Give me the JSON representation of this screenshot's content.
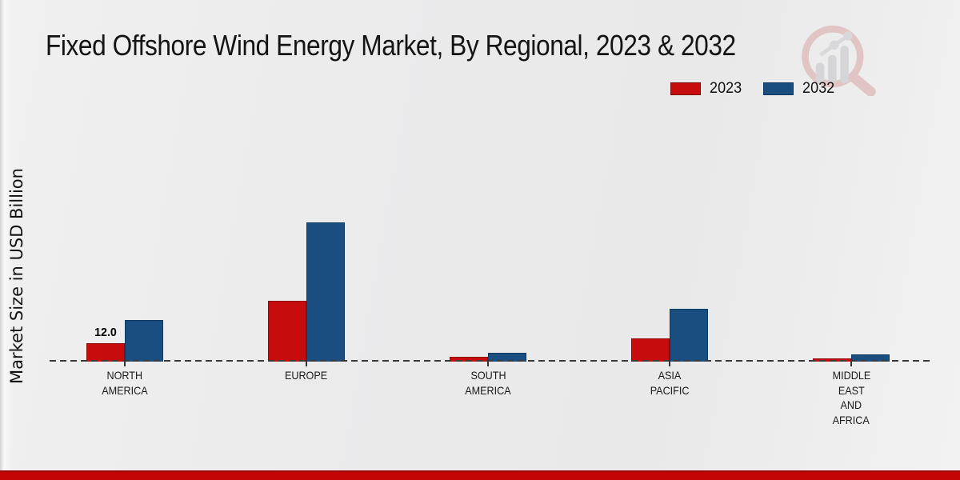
{
  "header": {
    "title": "Fixed Offshore Wind Energy Market, By Regional, 2023 & 2032"
  },
  "legend": {
    "items": [
      {
        "label": "2023",
        "color": "#c60c0c",
        "border": "#7f0909"
      },
      {
        "label": "2032",
        "color": "#1b4e80",
        "border": "#0d3660"
      }
    ]
  },
  "axis": {
    "y_label": "Market Size in USD Billion"
  },
  "chart_data": {
    "type": "bar",
    "title": "Fixed Offshore Wind Energy Market, By Regional, 2023 & 2032",
    "ylabel": "Market Size in USD Billion",
    "xlabel": "",
    "categories": [
      "North America",
      "Europe",
      "South America",
      "Asia Pacific",
      "Middle East and Africa"
    ],
    "category_tick_lines": [
      [
        "NORTH",
        "AMERICA"
      ],
      [
        "EUROPE"
      ],
      [
        "SOUTH",
        "AMERICA"
      ],
      [
        "ASIA",
        "PACIFIC"
      ],
      [
        "MIDDLE",
        "EAST",
        "AND",
        "AFRICA"
      ]
    ],
    "series": [
      {
        "name": "2023",
        "color": "#c60c0c",
        "border": "#8f0909",
        "values": [
          12.0,
          40.3,
          3.1,
          15.4,
          1.9
        ]
      },
      {
        "name": "2032",
        "color": "#1b4e80",
        "border": "#103a61",
        "values": [
          27.5,
          92.3,
          5.8,
          35.1,
          4.7
        ]
      }
    ],
    "data_labels": [
      {
        "series_index": 0,
        "category_index": 0,
        "text": "12.0"
      }
    ],
    "ylim": [
      0,
      100
    ],
    "grid": false,
    "baseline_style": "dashed",
    "legend_position": "top-right"
  },
  "watermark": {
    "icon": "magnifier-bar-chart-logo"
  },
  "footer": {
    "band_color": "#c30505"
  }
}
